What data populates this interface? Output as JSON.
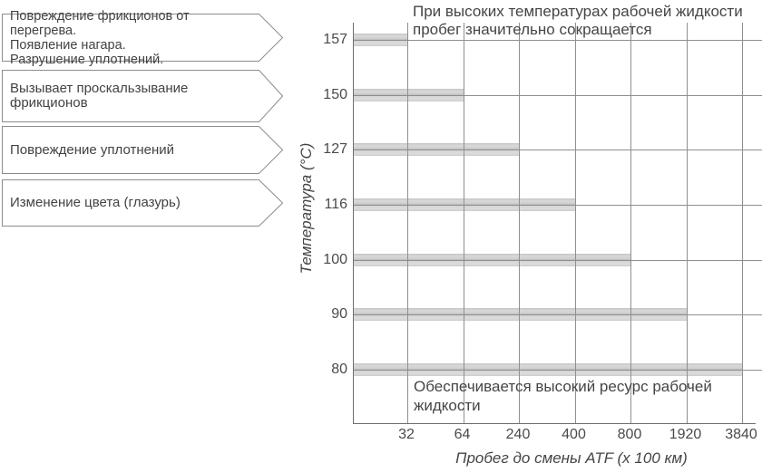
{
  "chart_data": {
    "type": "bar",
    "orientation": "horizontal",
    "title": "При высоких температурах рабочей жидкости пробег значительно сокращается",
    "title_lines": [
      "При высоких температурах рабочей жидкости",
      "пробег значительно сокращается"
    ],
    "ylabel": "Температура (°C)",
    "xlabel": "Пробег до смены ATF (x 100 км)",
    "categories": [
      "157",
      "150",
      "127",
      "116",
      "100",
      "90",
      "80"
    ],
    "values": [
      32,
      64,
      240,
      400,
      800,
      1920,
      3840
    ],
    "x_tick_labels": [
      "32",
      "64",
      "240",
      "400",
      "800",
      "1920",
      "3840"
    ],
    "x_scale_note": "ticks equally spaced (doubling-style scale)",
    "annotation": "Обеспечивается высокий ресурс рабочей жидкости",
    "annotation_lines": [
      "Обеспечивается высокий ресурс рабочей",
      "жидкости"
    ],
    "grid": true,
    "legend_position": "none",
    "bar_color": "#d9d9d9",
    "bar_stripe_color": "#a6a6a6",
    "grid_color": "#8f8f8f",
    "axis_color": "#6e6e6e",
    "text_color": "#454545"
  },
  "callouts": [
    {
      "lines": [
        "Повреждение фрикционов от перегрева.",
        "Появление нагара.",
        "Разрушение уплотнений."
      ],
      "points_to": "157"
    },
    {
      "lines": [
        "Вызывает проскальзывание фрикционов"
      ],
      "points_to": "150"
    },
    {
      "lines": [
        "Повреждение уплотнений"
      ],
      "points_to": "127"
    },
    {
      "lines": [
        "Изменение цвета (глазурь)"
      ],
      "points_to": "116"
    }
  ]
}
